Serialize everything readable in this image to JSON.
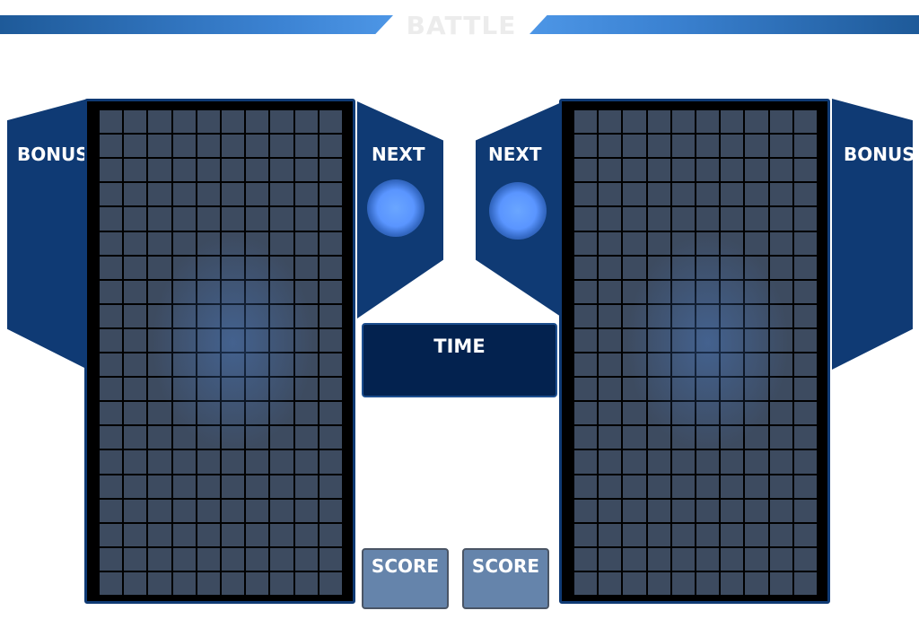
{
  "header": {
    "title": "BATTLE"
  },
  "players": [
    {
      "bonus_label": "BONUS",
      "next_label": "NEXT",
      "score_label": "SCORE"
    },
    {
      "bonus_label": "BONUS",
      "next_label": "NEXT",
      "score_label": "SCORE"
    }
  ],
  "center": {
    "time_label": "TIME"
  },
  "board": {
    "columns": 10,
    "rows": 20
  },
  "colors": {
    "panel": "#0f3a74",
    "cell": "#3d4b60",
    "orb": "#5a95ff",
    "score_box": "#6584ab"
  }
}
